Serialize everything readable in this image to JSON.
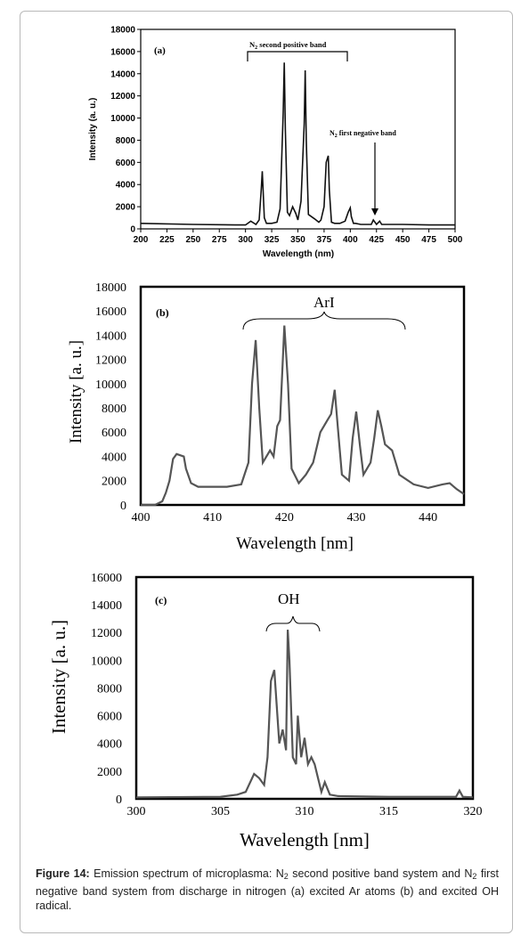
{
  "chart_data": [
    {
      "type": "line",
      "panel_label": "(a)",
      "xlabel": "Wavelength (nm)",
      "ylabel": "Intensity (a. u.)",
      "xlim": [
        200,
        500
      ],
      "ylim": [
        0,
        18000
      ],
      "xticks": [
        "200",
        "225",
        "250",
        "275",
        "300",
        "325",
        "350",
        "375",
        "400",
        "425",
        "450",
        "475",
        "500"
      ],
      "yticks": [
        "0",
        "2000",
        "4000",
        "6000",
        "8000",
        "10000",
        "12000",
        "14000",
        "16000",
        "18000"
      ],
      "annotations": {
        "band1_main": "N",
        "band1_sub": "2",
        "band1_rest": " second positive band",
        "band2_main": "N",
        "band2_sub": "2",
        "band2_rest": " first negative band"
      },
      "series": [
        {
          "line_color": "#111111",
          "x": [
            200,
            250,
            290,
            300,
            305,
            310,
            313,
            315,
            316,
            318,
            320,
            325,
            330,
            333,
            336,
            337,
            338,
            340,
            342,
            345,
            348,
            350,
            353,
            356,
            357,
            358,
            360,
            363,
            366,
            370,
            372,
            375,
            377,
            379,
            380,
            382,
            385,
            390,
            395,
            398,
            400,
            401,
            403,
            405,
            410,
            415,
            420,
            422,
            425,
            428,
            430,
            435,
            450,
            475,
            500
          ],
          "y": [
            500,
            400,
            350,
            350,
            700,
            400,
            800,
            3500,
            5200,
            1000,
            500,
            500,
            600,
            1800,
            10500,
            15000,
            9000,
            1500,
            1200,
            2000,
            1400,
            800,
            2500,
            9500,
            14300,
            8000,
            1300,
            1100,
            900,
            600,
            800,
            2000,
            6000,
            6600,
            3500,
            600,
            500,
            500,
            700,
            1500,
            1900,
            1100,
            500,
            500,
            400,
            400,
            400,
            800,
            400,
            700,
            400,
            400,
            400,
            350,
            350
          ]
        }
      ]
    },
    {
      "type": "line",
      "panel_label": "(b)",
      "xlabel": "Wavelength [nm]",
      "ylabel": "Intensity [a. u.]",
      "xlim": [
        400,
        445
      ],
      "ylim": [
        0,
        18000
      ],
      "xticks": [
        "400",
        "410",
        "420",
        "430",
        "440"
      ],
      "yticks": [
        "0",
        "2000",
        "4000",
        "6000",
        "8000",
        "10000",
        "12000",
        "14000",
        "16000",
        "18000"
      ],
      "annotations": {
        "band": "ArI"
      },
      "series": [
        {
          "line_color": "#555555",
          "x": [
            400,
            402,
            403,
            403.5,
            404,
            404.5,
            405,
            406,
            406.3,
            407,
            408,
            410,
            412,
            414,
            415,
            415.5,
            416,
            416.5,
            417,
            418,
            418.5,
            419,
            419.4,
            420,
            420.5,
            421,
            422,
            423,
            424,
            425,
            426,
            426.5,
            427,
            427.5,
            428,
            429,
            429.5,
            430,
            430.5,
            431,
            432,
            432.5,
            433,
            433.5,
            434,
            435,
            436,
            438,
            440,
            442,
            443,
            444,
            445
          ],
          "y": [
            0,
            0,
            300,
            1000,
            2000,
            3800,
            4200,
            4000,
            3000,
            1800,
            1500,
            1500,
            1500,
            1700,
            3500,
            10000,
            13600,
            8000,
            3500,
            4500,
            4000,
            6500,
            7000,
            14800,
            10000,
            3000,
            1800,
            2500,
            3500,
            6000,
            7000,
            7500,
            9500,
            6000,
            2500,
            2000,
            5500,
            7700,
            5000,
            2500,
            3500,
            5500,
            7800,
            6500,
            5000,
            4500,
            2500,
            1700,
            1400,
            1700,
            1800,
            1300,
            900
          ]
        }
      ]
    },
    {
      "type": "line",
      "panel_label": "(c)",
      "xlabel": "Wavelength [nm]",
      "ylabel": "Intensity [a. u.]",
      "xlim": [
        300,
        320
      ],
      "ylim": [
        0,
        16000
      ],
      "xticks": [
        "300",
        "305",
        "310",
        "315",
        "320"
      ],
      "yticks": [
        "0",
        "2000",
        "4000",
        "6000",
        "8000",
        "10000",
        "12000",
        "14000",
        "16000"
      ],
      "annotations": {
        "band": "OH"
      },
      "series": [
        {
          "line_color": "#555555",
          "x": [
            300,
            305,
            306,
            306.5,
            307,
            307.3,
            307.6,
            307.8,
            308,
            308.2,
            308.5,
            308.7,
            308.9,
            309,
            309.1,
            309.3,
            309.5,
            309.6,
            309.8,
            310,
            310.2,
            310.4,
            310.6,
            310.8,
            311,
            311.2,
            311.5,
            312,
            315,
            319,
            319.2,
            319.4,
            320
          ],
          "y": [
            100,
            150,
            300,
            500,
            1800,
            1500,
            1000,
            3000,
            8500,
            9300,
            4000,
            5000,
            3500,
            12200,
            10000,
            3000,
            2500,
            6000,
            3000,
            4400,
            2500,
            3000,
            2500,
            1500,
            500,
            1200,
            300,
            200,
            150,
            150,
            600,
            150,
            100
          ]
        }
      ]
    }
  ],
  "caption": {
    "label": "Figure 14:",
    "part1": " Emission spectrum of microplasma: N",
    "sub1": "2",
    "part2": " second positive band system and N",
    "sub2": "2",
    "part3": " first negative band system from discharge in nitrogen (a) excited Ar atoms (b) and excited OH radical."
  }
}
